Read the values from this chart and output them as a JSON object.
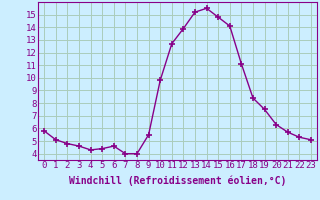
{
  "x": [
    0,
    1,
    2,
    3,
    4,
    5,
    6,
    7,
    8,
    9,
    10,
    11,
    12,
    13,
    14,
    15,
    16,
    17,
    18,
    19,
    20,
    21,
    22,
    23
  ],
  "y": [
    5.8,
    5.1,
    4.8,
    4.6,
    4.3,
    4.4,
    4.6,
    4.0,
    4.0,
    5.5,
    9.8,
    12.7,
    13.9,
    15.2,
    15.5,
    14.8,
    14.1,
    11.1,
    8.4,
    7.5,
    6.3,
    5.7,
    5.3,
    5.1
  ],
  "xlabel": "Windchill (Refroidissement éolien,°C)",
  "line_color": "#880088",
  "bg_color": "#cceeff",
  "grid_color": "#aaccbb",
  "ylim": [
    3.5,
    16.0
  ],
  "yticks": [
    4,
    5,
    6,
    7,
    8,
    9,
    10,
    11,
    12,
    13,
    14,
    15
  ],
  "xticks": [
    0,
    1,
    2,
    3,
    4,
    5,
    6,
    7,
    8,
    9,
    10,
    11,
    12,
    13,
    14,
    15,
    16,
    17,
    18,
    19,
    20,
    21,
    22,
    23
  ],
  "tick_fontsize": 6.5,
  "xlabel_fontsize": 7,
  "marker_size": 4,
  "line_width": 1.0
}
